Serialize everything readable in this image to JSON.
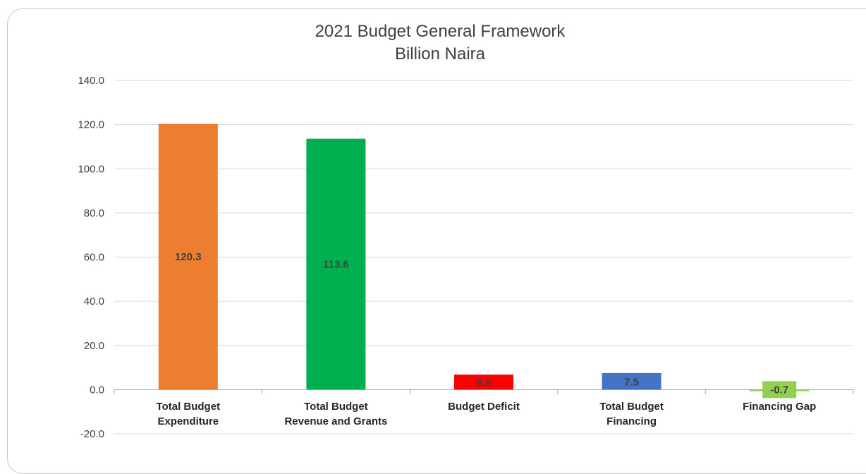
{
  "chart_data": {
    "type": "bar",
    "title": "2021 Budget General Framework",
    "subtitle": "Billion Naira",
    "categories": [
      [
        "Total Budget",
        "Expenditure"
      ],
      [
        "Total Budget",
        "Revenue and Grants"
      ],
      [
        "Budget Deficit"
      ],
      [
        "Total Budget",
        "Financing"
      ],
      [
        "Financing Gap"
      ]
    ],
    "values": [
      120.3,
      113.6,
      6.8,
      7.5,
      -0.7
    ],
    "data_labels": [
      "120.3",
      "113.6",
      "6.8",
      "7.5",
      "-0.7"
    ],
    "colors": [
      "#ED7D31",
      "#00B050",
      "#FF0000",
      "#4472C4",
      "#92D050"
    ],
    "ylim": [
      -20,
      140
    ],
    "yticks": [
      "140.0",
      "120.0",
      "100.0",
      "80.0",
      "60.0",
      "40.0",
      "20.0",
      "0.0",
      "-20.0"
    ],
    "ytick_values": [
      140,
      120,
      100,
      80,
      60,
      40,
      20,
      0,
      -20
    ],
    "grid": true,
    "legend": "none"
  }
}
